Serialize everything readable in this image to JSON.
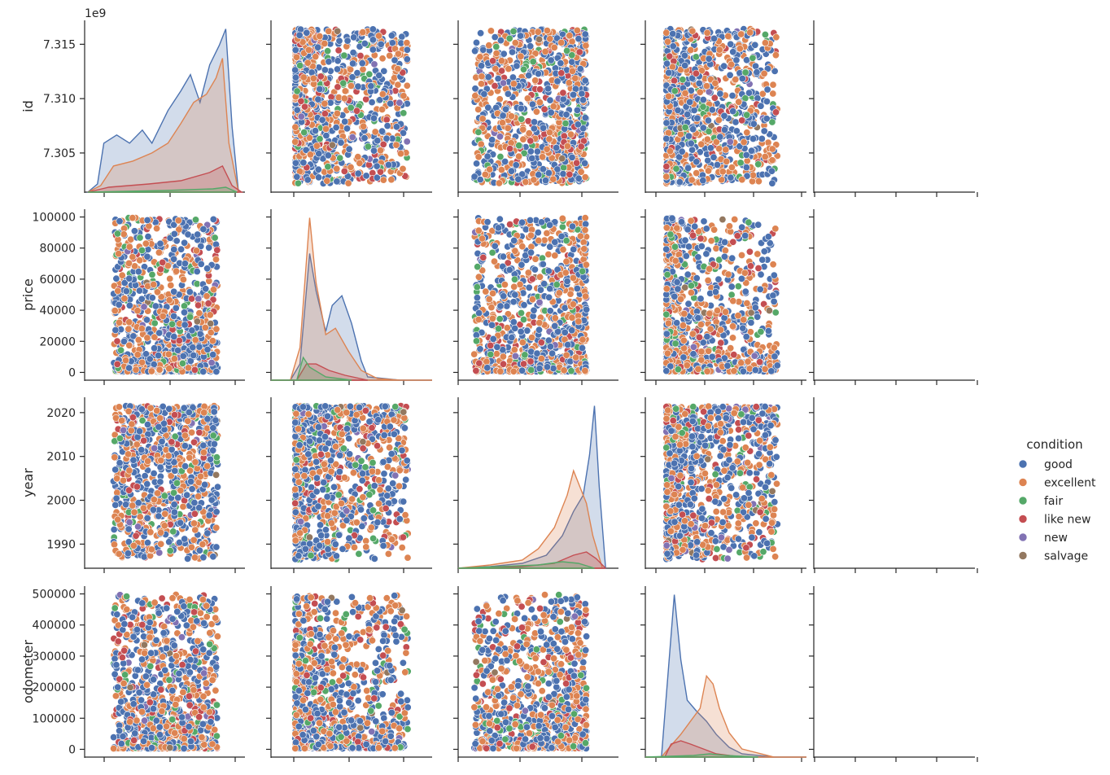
{
  "chart_data": {
    "type": "scatter",
    "kind": "pairplot",
    "title": "",
    "variables": [
      "id",
      "price",
      "year",
      "odometer",
      ""
    ],
    "axis_labels": [
      "id",
      "price",
      "year",
      "odometer"
    ],
    "y_ticks": {
      "id": {
        "labels": [
          "7.305",
          "7.310",
          "7.315"
        ],
        "values": [
          7.305,
          7.31,
          7.315
        ],
        "offset_label": "1e9",
        "range": [
          7.3014,
          7.3172
        ]
      },
      "price": {
        "labels": [
          "0",
          "20000",
          "40000",
          "60000",
          "80000",
          "100000"
        ],
        "values": [
          0,
          20000,
          40000,
          60000,
          80000,
          100000
        ],
        "range": [
          -5000,
          105000
        ]
      },
      "year": {
        "labels": [
          "1990",
          "2000",
          "2010",
          "2020"
        ],
        "values": [
          1990,
          2000,
          2010,
          2020
        ],
        "range": [
          1984.5,
          2023.5
        ]
      },
      "odometer": {
        "labels": [
          "0",
          "100000",
          "200000",
          "300000",
          "400000",
          "500000"
        ],
        "values": [
          0,
          100000,
          200000,
          300000,
          400000,
          500000
        ],
        "range": [
          -25000,
          525000
        ]
      }
    },
    "legend": {
      "title": "condition",
      "position": "center-right",
      "entries": [
        {
          "name": "good",
          "color": "#4c72b0"
        },
        {
          "name": "excellent",
          "color": "#dd8452"
        },
        {
          "name": "fair",
          "color": "#55a868"
        },
        {
          "name": "like new",
          "color": "#c44e52"
        },
        {
          "name": "new",
          "color": "#8172b3"
        },
        {
          "name": "salvage",
          "color": "#937860"
        }
      ]
    },
    "kde_diagonal": {
      "id": {
        "good": 1.0,
        "excellent": 0.82,
        "like new": 0.19,
        "fair": 0.05,
        "peak_value": 7.3147
      },
      "price": {
        "good": 0.79,
        "excellent": 1.0,
        "like new": 0.17,
        "fair": 0.09,
        "peak_value": 4800
      },
      "year": {
        "good": 1.0,
        "excellent": 0.63,
        "like new": 0.09,
        "fair": 0.03,
        "peak_value": 2018
      },
      "odometer": {
        "good": 1.0,
        "excellent": 0.52,
        "like new": 0.1,
        "fair": 0.03,
        "peak_value": 40000
      }
    },
    "grid": false
  }
}
